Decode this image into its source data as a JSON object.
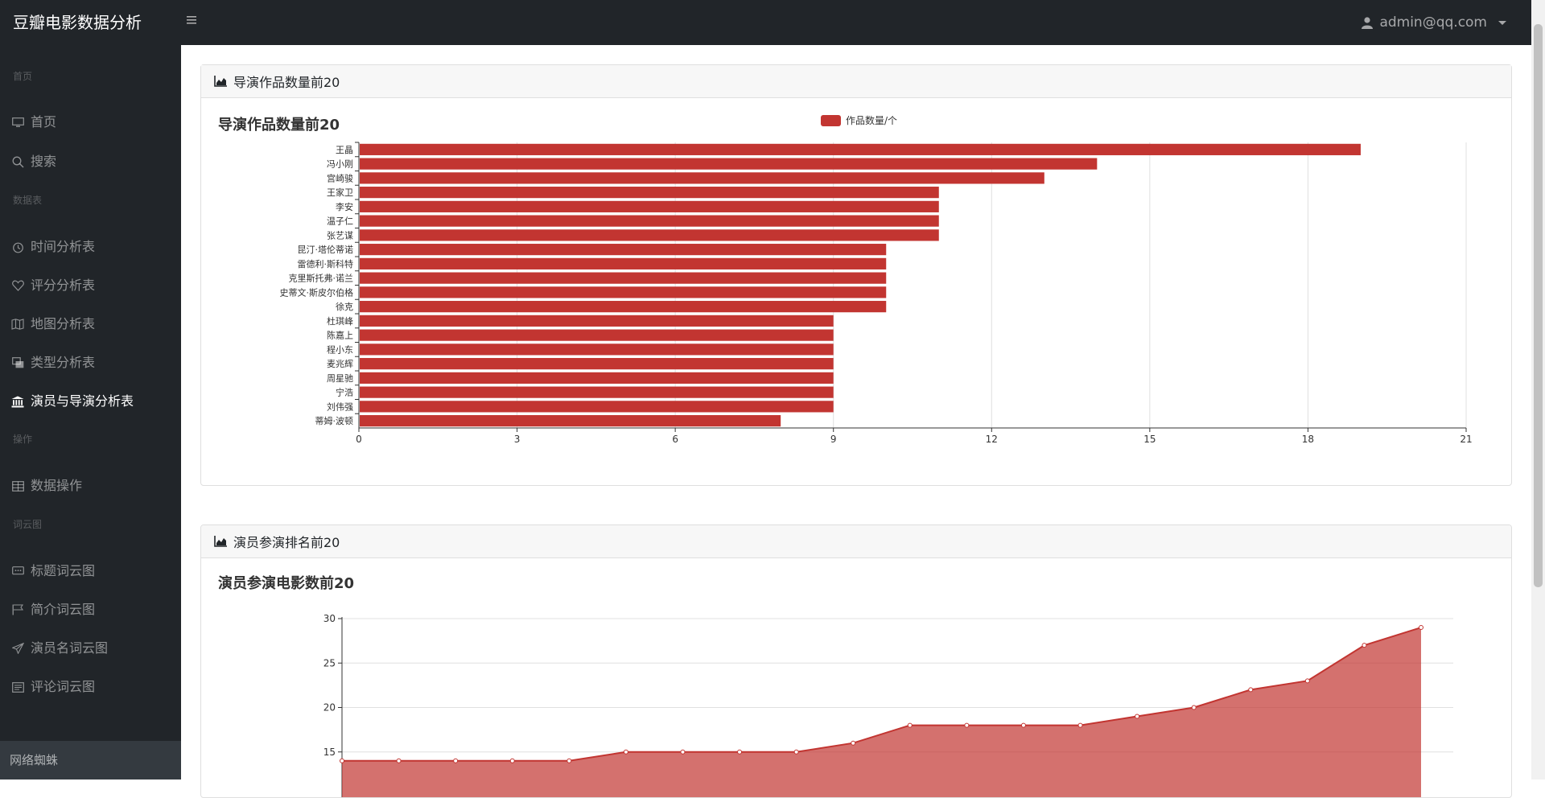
{
  "app": {
    "brand": "豆瓣电影数据分析",
    "user": "admin@qq.com"
  },
  "sidebar": {
    "sections": [
      {
        "heading": "首页",
        "items": [
          {
            "label": "首页",
            "icon": "monitor-icon"
          },
          {
            "label": "搜索",
            "icon": "search-icon"
          }
        ]
      },
      {
        "heading": "数据表",
        "items": [
          {
            "label": "时间分析表",
            "icon": "clock-icon"
          },
          {
            "label": "评分分析表",
            "icon": "heart-icon"
          },
          {
            "label": "地图分析表",
            "icon": "map-icon"
          },
          {
            "label": "类型分析表",
            "icon": "layers-icon"
          },
          {
            "label": "演员与导演分析表",
            "icon": "bank-icon",
            "active": true
          }
        ]
      },
      {
        "heading": "操作",
        "items": [
          {
            "label": "数据操作",
            "icon": "table-icon"
          }
        ]
      },
      {
        "heading": "词云图",
        "items": [
          {
            "label": "标题词云图",
            "icon": "chat-icon"
          },
          {
            "label": "简介词云图",
            "icon": "flag-icon"
          },
          {
            "label": "演员名词云图",
            "icon": "send-icon"
          },
          {
            "label": "评论词云图",
            "icon": "list-icon"
          }
        ]
      }
    ],
    "footer": "网络蜘蛛"
  },
  "cards": {
    "directors": {
      "header": "导演作品数量前20"
    },
    "actors": {
      "header": "演员参演排名前20"
    }
  },
  "colors": {
    "accent": "#c23531",
    "sidebar": "#212529"
  },
  "chart_data": [
    {
      "type": "bar",
      "orientation": "horizontal",
      "title": "导演作品数量前20",
      "legend": "作品数量/个",
      "legend_position": "top-center",
      "categories": [
        "王晶",
        "冯小刚",
        "宫崎骏",
        "王家卫",
        "李安",
        "温子仁",
        "张艺谋",
        "昆汀·塔伦蒂诺",
        "雷德利·斯科特",
        "克里斯托弗·诺兰",
        "史蒂文·斯皮尔伯格",
        "徐克",
        "杜琪峰",
        "陈嘉上",
        "程小东",
        "麦兆辉",
        "周星驰",
        "宁浩",
        "刘伟强",
        "蒂姆·波顿"
      ],
      "values": [
        19,
        14,
        13,
        11,
        11,
        11,
        11,
        10,
        10,
        10,
        10,
        10,
        9,
        9,
        9,
        9,
        9,
        9,
        9,
        8
      ],
      "xlim": [
        0,
        21
      ],
      "xticks": [
        0,
        3,
        6,
        9,
        12,
        15,
        18,
        21
      ],
      "grid": true
    },
    {
      "type": "area",
      "title": "演员参演电影数前20",
      "values": [
        14,
        14,
        14,
        14,
        14,
        15,
        15,
        15,
        15,
        16,
        18,
        18,
        18,
        18,
        19,
        20,
        22,
        23,
        27,
        29
      ],
      "ylim": [
        10,
        30
      ],
      "yticks": [
        15,
        20,
        25,
        30
      ],
      "grid": true
    }
  ]
}
